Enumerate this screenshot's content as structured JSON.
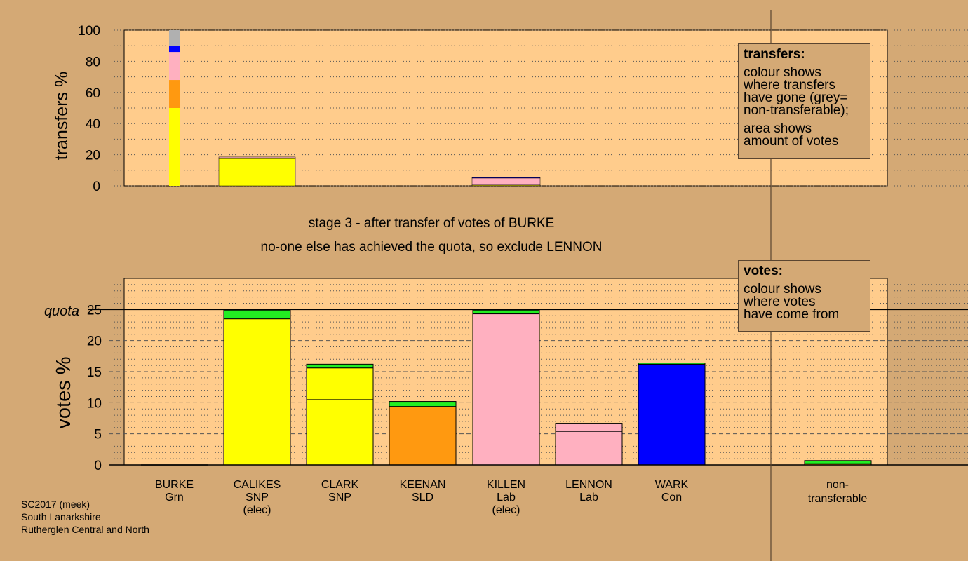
{
  "stage": {
    "line1": "stage 3 - after transfer of votes of BURKE",
    "line2": "no-one else has achieved the quota, so exclude LENNON"
  },
  "footer": {
    "line1": "SC2017 (meek)",
    "line2": "South Lanarkshire",
    "line3": "Rutherglen Central and North"
  },
  "legend_transfers": {
    "title": "transfers:",
    "p1": [
      "colour shows",
      "where transfers",
      "have gone (grey=",
      "non-transferable);"
    ],
    "p2": [
      "area shows",
      "amount of votes"
    ]
  },
  "legend_votes": {
    "title": "votes:",
    "p1": [
      "colour shows",
      "where votes",
      "have come from"
    ]
  },
  "colors": {
    "background": "#d4a975",
    "plot": "#ffcc8c",
    "Grn": "#ffff00",
    "SNP": "#ffff00",
    "SLD": "#ff9910",
    "Lab": "#ffb0c0",
    "Con": "#0000ff",
    "stage3": "#22ee22",
    "nontransferable": "#b0b0b0"
  },
  "chart_data": [
    {
      "type": "bar",
      "name": "transfers",
      "ylabel": "transfers %",
      "ylim": [
        0,
        100
      ],
      "yticks": [
        0,
        20,
        40,
        60,
        80,
        100
      ],
      "source_column": {
        "candidate": "BURKE",
        "segments": [
          {
            "color": "SNP",
            "from": 0,
            "to": 50
          },
          {
            "color": "SLD",
            "from": 50,
            "to": 68
          },
          {
            "color": "Lab",
            "from": 68,
            "to": 86
          },
          {
            "color": "Con",
            "from": 86,
            "to": 90
          },
          {
            "color": "nontransferable",
            "from": 90,
            "to": 100
          }
        ]
      },
      "received": [
        {
          "candidate": "CALIKES",
          "values": [
            {
              "color": "SNP",
              "value": 17.5
            },
            {
              "color": "Lab",
              "value": 1.0
            }
          ]
        },
        {
          "candidate": "KILLEN",
          "values": [
            {
              "color": "SNP",
              "value": 0.5
            },
            {
              "color": "Lab",
              "value": 4.5
            },
            {
              "color": "Con",
              "value": 0.4
            }
          ]
        }
      ]
    },
    {
      "type": "bar",
      "name": "votes",
      "ylabel": "votes %",
      "ylim": [
        0,
        30
      ],
      "yticks": [
        0,
        5,
        10,
        15,
        20,
        25
      ],
      "quota": 25,
      "quota_label": "quota",
      "categories": [
        {
          "name": "BURKE",
          "party": "Grn",
          "elected": ""
        },
        {
          "name": "CALIKES",
          "party": "SNP",
          "elected": "(elec)"
        },
        {
          "name": "CLARK",
          "party": "SNP",
          "elected": ""
        },
        {
          "name": "KEENAN",
          "party": "SLD",
          "elected": ""
        },
        {
          "name": "KILLEN",
          "party": "Lab",
          "elected": "(elec)"
        },
        {
          "name": "LENNON",
          "party": "Lab",
          "elected": ""
        },
        {
          "name": "WARK",
          "party": "Con",
          "elected": ""
        }
      ],
      "nontransferable_label": [
        "non-",
        "transferable"
      ],
      "stacks": [
        [
          {
            "color": "Grn",
            "value": 0
          }
        ],
        [
          {
            "color": "SNP",
            "value": 23.5
          },
          {
            "color": "stage3",
            "value": 1.4
          }
        ],
        [
          {
            "color": "SNP",
            "value": 10.5
          },
          {
            "color": "SNP",
            "value": 5.1
          },
          {
            "color": "stage3",
            "value": 0.6
          }
        ],
        [
          {
            "color": "SLD",
            "value": 9.4
          },
          {
            "color": "stage3",
            "value": 0.8
          }
        ],
        [
          {
            "color": "Lab",
            "value": 24.3
          },
          {
            "color": "stage3",
            "value": 0.6
          }
        ],
        [
          {
            "color": "Lab",
            "value": 5.4
          },
          {
            "color": "Lab",
            "value": 1.3
          }
        ],
        [
          {
            "color": "Con",
            "value": 16.2
          },
          {
            "color": "stage3",
            "value": 0.2
          }
        ]
      ],
      "nontransferable_stack": [
        {
          "color": "SLD",
          "value": 0.2
        },
        {
          "color": "stage3",
          "value": 0.5
        }
      ]
    }
  ]
}
